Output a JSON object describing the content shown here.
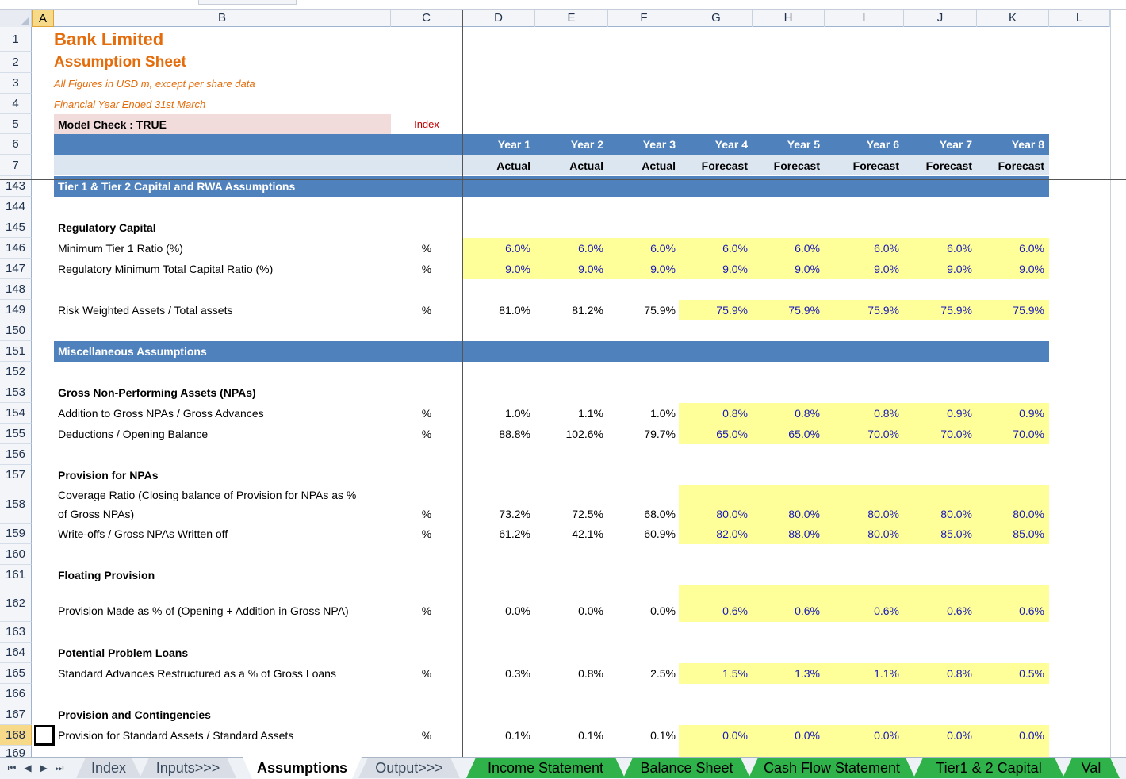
{
  "columns": [
    "A",
    "B",
    "C",
    "D",
    "E",
    "F",
    "G",
    "H",
    "I",
    "J",
    "K",
    "L"
  ],
  "header": {
    "title": "Bank Limited",
    "subtitle": "Assumption Sheet",
    "note1": "All Figures in USD m, except per share data",
    "note2": "Financial Year Ended 31st March",
    "model_check": "Model Check : TRUE",
    "index_link": "Index",
    "years": [
      "Year 1",
      "Year 2",
      "Year 3",
      "Year 4",
      "Year 5",
      "Year 6",
      "Year 7",
      "Year 8"
    ],
    "types": [
      "Actual",
      "Actual",
      "Actual",
      "Forecast",
      "Forecast",
      "Forecast",
      "Forecast",
      "Forecast"
    ]
  },
  "row_numbers": {
    "r1": "1",
    "r2": "2",
    "r3": "3",
    "r4": "4",
    "r5": "5",
    "r6": "6",
    "r7": "7"
  },
  "rows": [
    {
      "n": "143",
      "type": "section",
      "label": "Tier 1 & Tier 2 Capital and RWA Assumptions"
    },
    {
      "n": "144",
      "type": "blank"
    },
    {
      "n": "145",
      "type": "subhead",
      "label": "Regulatory Capital"
    },
    {
      "n": "146",
      "type": "data",
      "label": "Minimum Tier 1 Ratio (%)",
      "unit": "%",
      "values": [
        "6.0%",
        "6.0%",
        "6.0%",
        "6.0%",
        "6.0%",
        "6.0%",
        "6.0%",
        "6.0%"
      ],
      "input_from": 0
    },
    {
      "n": "147",
      "type": "data",
      "label": "Regulatory Minimum Total Capital Ratio (%)",
      "unit": "%",
      "values": [
        "9.0%",
        "9.0%",
        "9.0%",
        "9.0%",
        "9.0%",
        "9.0%",
        "9.0%",
        "9.0%"
      ],
      "input_from": 0
    },
    {
      "n": "148",
      "type": "blank"
    },
    {
      "n": "149",
      "type": "data",
      "label": "Risk Weighted Assets / Total assets",
      "unit": "%",
      "values": [
        "81.0%",
        "81.2%",
        "75.9%",
        "75.9%",
        "75.9%",
        "75.9%",
        "75.9%",
        "75.9%"
      ],
      "input_from": 3
    },
    {
      "n": "150",
      "type": "blank"
    },
    {
      "n": "151",
      "type": "section",
      "label": "Miscellaneous Assumptions"
    },
    {
      "n": "152",
      "type": "blank"
    },
    {
      "n": "153",
      "type": "subhead",
      "label": "Gross Non-Performing Assets (NPAs)"
    },
    {
      "n": "154",
      "type": "data",
      "label": "Addition to Gross NPAs / Gross Advances",
      "unit": "%",
      "values": [
        "1.0%",
        "1.1%",
        "1.0%",
        "0.8%",
        "0.8%",
        "0.8%",
        "0.9%",
        "0.9%"
      ],
      "input_from": 3
    },
    {
      "n": "155",
      "type": "data",
      "label": "Deductions / Opening Balance",
      "unit": "%",
      "values": [
        "88.8%",
        "102.6%",
        "79.7%",
        "65.0%",
        "65.0%",
        "70.0%",
        "70.0%",
        "70.0%"
      ],
      "input_from": 3
    },
    {
      "n": "156",
      "type": "blank"
    },
    {
      "n": "157",
      "type": "subhead",
      "label": "Provision for NPAs"
    },
    {
      "n": "158",
      "type": "data2",
      "label": "Coverage Ratio (Closing balance of Provision for NPAs as %",
      "label2": "of Gross NPAs)",
      "unit": "%",
      "values": [
        "73.2%",
        "72.5%",
        "68.0%",
        "80.0%",
        "80.0%",
        "80.0%",
        "80.0%",
        "80.0%"
      ],
      "input_from": 3
    },
    {
      "n": "159",
      "type": "data",
      "label": "Write-offs / Gross NPAs Written off",
      "unit": "%",
      "values": [
        "61.2%",
        "42.1%",
        "60.9%",
        "82.0%",
        "88.0%",
        "80.0%",
        "85.0%",
        "85.0%"
      ],
      "input_from": 3
    },
    {
      "n": "160",
      "type": "blank"
    },
    {
      "n": "161",
      "type": "subhead",
      "label": "Floating Provision"
    },
    {
      "n": "162",
      "type": "data2b",
      "label": "Provision Made as % of (Opening + Addition in Gross NPA)",
      "unit": "%",
      "values": [
        "0.0%",
        "0.0%",
        "0.0%",
        "0.6%",
        "0.6%",
        "0.6%",
        "0.6%",
        "0.6%"
      ],
      "input_from": 3
    },
    {
      "n": "163",
      "type": "blank"
    },
    {
      "n": "164",
      "type": "subhead",
      "label": "Potential Problem Loans"
    },
    {
      "n": "165",
      "type": "data",
      "label": "Standard Advances Restructured as a % of Gross Loans",
      "unit": "%",
      "values": [
        "0.3%",
        "0.8%",
        "2.5%",
        "1.5%",
        "1.3%",
        "1.1%",
        "0.8%",
        "0.5%"
      ],
      "input_from": 3
    },
    {
      "n": "166",
      "type": "blank"
    },
    {
      "n": "167",
      "type": "subhead",
      "label": "Provision and Contingencies"
    },
    {
      "n": "168",
      "type": "data",
      "label": "Provision for Standard Assets / Standard Assets",
      "unit": "%",
      "values": [
        "0.1%",
        "0.1%",
        "0.1%",
        "0.0%",
        "0.0%",
        "0.0%",
        "0.0%",
        "0.0%"
      ],
      "input_from": 3,
      "selected": true
    },
    {
      "n": "169",
      "type": "partial"
    }
  ],
  "sheet_tabs": [
    {
      "label": "Index",
      "style": "gray"
    },
    {
      "label": "Inputs>>>",
      "style": "gray"
    },
    {
      "label": "Assumptions",
      "style": "active"
    },
    {
      "label": "Output>>>",
      "style": "gray"
    },
    {
      "label": "Income Statement",
      "style": "green"
    },
    {
      "label": "Balance Sheet",
      "style": "green"
    },
    {
      "label": "Cash Flow Statement",
      "style": "green"
    },
    {
      "label": "Tier1 & 2 Capital",
      "style": "green"
    },
    {
      "label": "Val",
      "style": "green"
    }
  ],
  "colors": {
    "section_band": "#4f81bd",
    "header_light": "#dce6f1",
    "input_fill": "#ffff99",
    "input_text": "#1a1ab8",
    "title": "#e46c0a",
    "tab_green": "#2fb24a"
  }
}
